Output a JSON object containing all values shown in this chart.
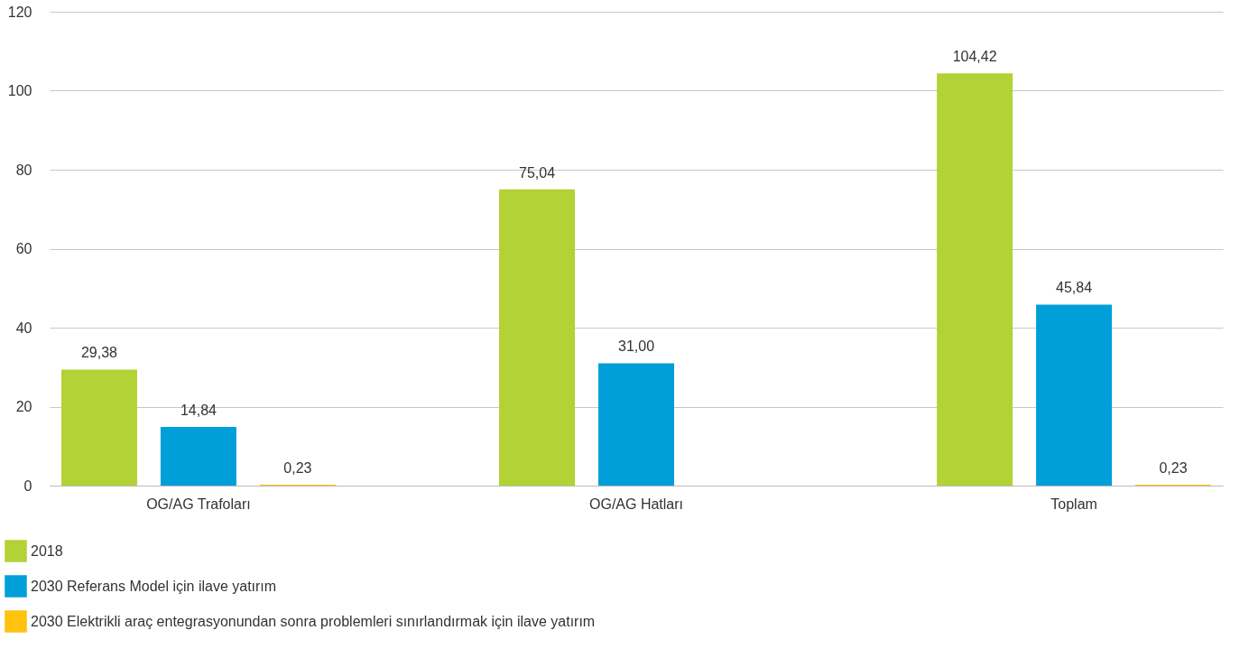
{
  "chart_data": {
    "type": "bar",
    "categories": [
      "OG/AG Trafoları",
      "OG/AG Hatları",
      "Toplam"
    ],
    "series": [
      {
        "name": "2018",
        "color": "#b2d235",
        "values": [
          29.38,
          75.04,
          104.42
        ],
        "value_labels": [
          "29,38",
          "75,04",
          "104,42"
        ]
      },
      {
        "name": "2030 Referans Model için ilave yatırım",
        "color": "#009fda",
        "values": [
          14.84,
          31.0,
          45.84
        ],
        "value_labels": [
          "14,84",
          "31,00",
          "45,84"
        ]
      },
      {
        "name": "2030 Elektrikli araç entegrasyonundan sonra problemleri sınırlandırmak için ilave yatırım",
        "color": "#ffc20e",
        "values": [
          0.23,
          null,
          0.23
        ],
        "value_labels": [
          "0,23",
          null,
          "0,23"
        ]
      }
    ],
    "ylim": [
      0,
      120
    ],
    "yticks": [
      0,
      20,
      40,
      60,
      80,
      100,
      120
    ],
    "grid": "y",
    "legend": "bottom"
  }
}
